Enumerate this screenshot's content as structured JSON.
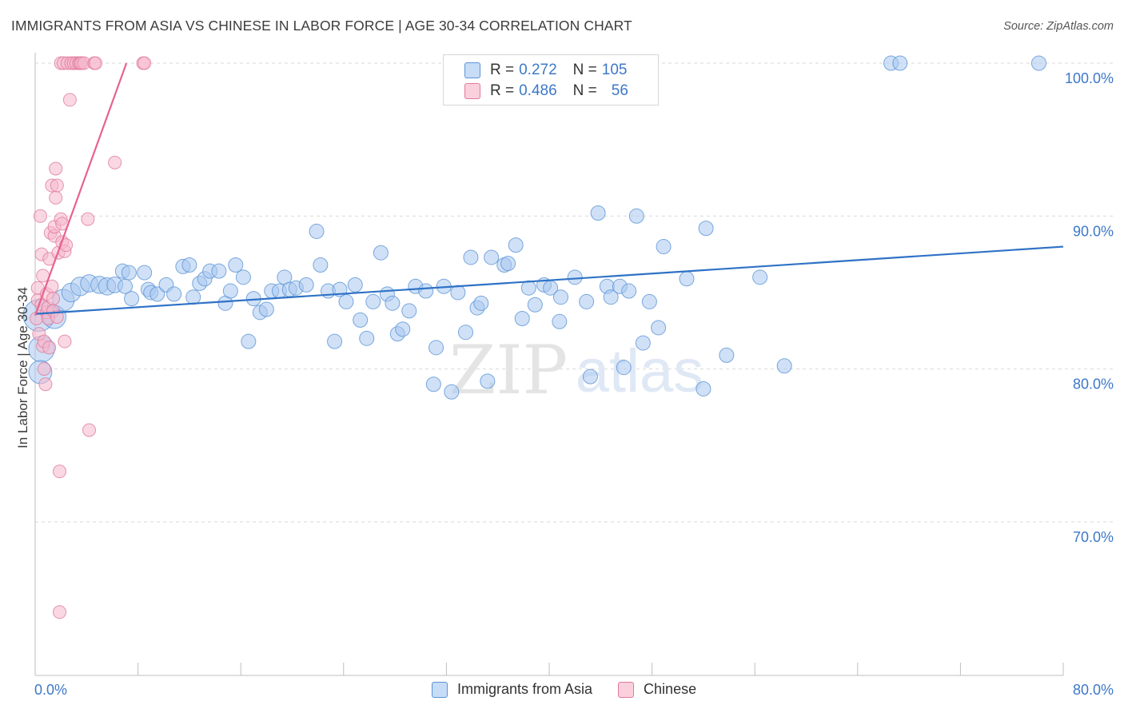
{
  "header": {
    "title": "IMMIGRANTS FROM ASIA VS CHINESE IN LABOR FORCE | AGE 30-34 CORRELATION CHART",
    "source": "Source: ZipAtlas.com"
  },
  "colors": {
    "blue_fill": "#a9c8f0",
    "blue_stroke": "#5b93d6",
    "blue_line": "#2f72c6",
    "pink_fill": "#f6b8cc",
    "pink_stroke": "#e07a9c",
    "pink_line": "#e8628d",
    "tick_label": "#3d78c8",
    "grid": "#d9d9d9"
  },
  "legend": {
    "rows": [
      {
        "r_label": "R =",
        "r_value": "0.272",
        "n_label": "N =",
        "n_value": "105"
      },
      {
        "r_label": "R =",
        "r_value": "0.486",
        "n_label": "N =",
        "n_value": "56"
      }
    ],
    "bottom": [
      {
        "label": "Immigrants from Asia"
      },
      {
        "label": "Chinese"
      }
    ]
  },
  "watermark": {
    "zip": "ZIP",
    "atlas": "atlas"
  },
  "chart_data": {
    "type": "scatter",
    "title": "IMMIGRANTS FROM ASIA VS CHINESE IN LABOR FORCE | AGE 30-34 CORRELATION CHART",
    "xlabel": "",
    "ylabel": "In Labor Force | Age 30-34",
    "xlim": [
      0,
      80
    ],
    "ylim": [
      60.5,
      101.5
    ],
    "x_tick_labels": [
      {
        "value": 0,
        "label": "0.0%"
      },
      {
        "value": 80,
        "label": "80.0%"
      }
    ],
    "y_tick_labels": [
      {
        "value": 100,
        "label": "100.0%"
      },
      {
        "value": 90,
        "label": "90.0%"
      },
      {
        "value": 80,
        "label": "80.0%"
      },
      {
        "value": 70,
        "label": "70.0%"
      }
    ],
    "grid": true,
    "series": [
      {
        "name": "Immigrants from Asia",
        "r": 0.272,
        "n": 105,
        "trend": {
          "x": [
            0,
            80
          ],
          "y": [
            83.6,
            88.0
          ]
        },
        "points": [
          {
            "x": 0.3,
            "y": 83.5,
            "s": 2.2
          },
          {
            "x": 0.5,
            "y": 81.3,
            "s": 1.8
          },
          {
            "x": 0.4,
            "y": 79.8,
            "s": 1.6
          },
          {
            "x": 1.5,
            "y": 83.4,
            "s": 1.6
          },
          {
            "x": 2.2,
            "y": 84.5,
            "s": 1.5
          },
          {
            "x": 2.8,
            "y": 85.0,
            "s": 1.3
          },
          {
            "x": 3.5,
            "y": 85.4,
            "s": 1.3
          },
          {
            "x": 4.2,
            "y": 85.6,
            "s": 1.2
          },
          {
            "x": 5.0,
            "y": 85.5,
            "s": 1.2
          },
          {
            "x": 5.6,
            "y": 85.4,
            "s": 1.2
          },
          {
            "x": 6.2,
            "y": 85.5,
            "s": 1.1
          },
          {
            "x": 6.8,
            "y": 86.4,
            "s": 1.0
          },
          {
            "x": 7.0,
            "y": 85.4,
            "s": 1.0
          },
          {
            "x": 7.5,
            "y": 84.6,
            "s": 1.0
          },
          {
            "x": 7.3,
            "y": 86.3,
            "s": 1.0
          },
          {
            "x": 8.5,
            "y": 86.3,
            "s": 1.0
          },
          {
            "x": 8.8,
            "y": 85.2,
            "s": 1.0
          },
          {
            "x": 9.0,
            "y": 85.0,
            "s": 1.0
          },
          {
            "x": 9.5,
            "y": 84.9,
            "s": 1.0
          },
          {
            "x": 10.2,
            "y": 85.5,
            "s": 1.0
          },
          {
            "x": 10.8,
            "y": 84.9,
            "s": 1.0
          },
          {
            "x": 11.5,
            "y": 86.7,
            "s": 1.0
          },
          {
            "x": 12.0,
            "y": 86.8,
            "s": 1.0
          },
          {
            "x": 12.3,
            "y": 84.7,
            "s": 1.0
          },
          {
            "x": 12.8,
            "y": 85.6,
            "s": 1.0
          },
          {
            "x": 13.2,
            "y": 85.9,
            "s": 1.0
          },
          {
            "x": 13.6,
            "y": 86.4,
            "s": 1.0
          },
          {
            "x": 14.3,
            "y": 86.4,
            "s": 1.0
          },
          {
            "x": 14.8,
            "y": 84.3,
            "s": 1.0
          },
          {
            "x": 15.2,
            "y": 85.1,
            "s": 1.0
          },
          {
            "x": 15.6,
            "y": 86.8,
            "s": 1.0
          },
          {
            "x": 16.2,
            "y": 86.0,
            "s": 1.0
          },
          {
            "x": 16.6,
            "y": 81.8,
            "s": 1.0
          },
          {
            "x": 17.0,
            "y": 84.6,
            "s": 1.0
          },
          {
            "x": 17.5,
            "y": 83.7,
            "s": 1.0
          },
          {
            "x": 18.0,
            "y": 83.9,
            "s": 1.0
          },
          {
            "x": 18.4,
            "y": 85.1,
            "s": 1.0
          },
          {
            "x": 19.0,
            "y": 85.1,
            "s": 1.0
          },
          {
            "x": 19.4,
            "y": 86.0,
            "s": 1.0
          },
          {
            "x": 19.8,
            "y": 85.2,
            "s": 1.0
          },
          {
            "x": 20.3,
            "y": 85.3,
            "s": 1.0
          },
          {
            "x": 21.1,
            "y": 85.5,
            "s": 1.0
          },
          {
            "x": 21.9,
            "y": 89.0,
            "s": 1.0
          },
          {
            "x": 22.2,
            "y": 86.8,
            "s": 1.0
          },
          {
            "x": 22.8,
            "y": 85.1,
            "s": 1.0
          },
          {
            "x": 23.3,
            "y": 81.8,
            "s": 1.0
          },
          {
            "x": 23.7,
            "y": 85.2,
            "s": 1.0
          },
          {
            "x": 24.2,
            "y": 84.4,
            "s": 1.0
          },
          {
            "x": 24.9,
            "y": 85.5,
            "s": 1.0
          },
          {
            "x": 25.3,
            "y": 83.2,
            "s": 1.0
          },
          {
            "x": 25.8,
            "y": 82.0,
            "s": 1.0
          },
          {
            "x": 26.3,
            "y": 84.4,
            "s": 1.0
          },
          {
            "x": 26.9,
            "y": 87.6,
            "s": 1.0
          },
          {
            "x": 27.4,
            "y": 84.9,
            "s": 1.0
          },
          {
            "x": 27.8,
            "y": 84.3,
            "s": 1.0
          },
          {
            "x": 28.2,
            "y": 82.3,
            "s": 1.0
          },
          {
            "x": 28.6,
            "y": 82.6,
            "s": 1.0
          },
          {
            "x": 29.1,
            "y": 83.8,
            "s": 1.0
          },
          {
            "x": 29.6,
            "y": 85.4,
            "s": 1.0
          },
          {
            "x": 30.4,
            "y": 85.1,
            "s": 1.0
          },
          {
            "x": 31.0,
            "y": 79.0,
            "s": 1.0
          },
          {
            "x": 31.2,
            "y": 81.4,
            "s": 1.0
          },
          {
            "x": 31.8,
            "y": 85.4,
            "s": 1.0
          },
          {
            "x": 32.4,
            "y": 78.5,
            "s": 1.0
          },
          {
            "x": 32.9,
            "y": 85.0,
            "s": 1.0
          },
          {
            "x": 33.5,
            "y": 82.4,
            "s": 1.0
          },
          {
            "x": 33.9,
            "y": 87.3,
            "s": 1.0
          },
          {
            "x": 34.4,
            "y": 84.0,
            "s": 1.0
          },
          {
            "x": 34.7,
            "y": 84.3,
            "s": 1.0
          },
          {
            "x": 35.2,
            "y": 79.2,
            "s": 1.0
          },
          {
            "x": 35.5,
            "y": 87.3,
            "s": 1.0
          },
          {
            "x": 36.5,
            "y": 86.8,
            "s": 1.0
          },
          {
            "x": 36.8,
            "y": 86.9,
            "s": 1.0
          },
          {
            "x": 37.4,
            "y": 88.1,
            "s": 1.0
          },
          {
            "x": 37.9,
            "y": 83.3,
            "s": 1.0
          },
          {
            "x": 38.4,
            "y": 85.3,
            "s": 1.0
          },
          {
            "x": 38.9,
            "y": 84.2,
            "s": 1.0
          },
          {
            "x": 39.6,
            "y": 85.5,
            "s": 1.0
          },
          {
            "x": 40.1,
            "y": 85.3,
            "s": 1.0
          },
          {
            "x": 40.8,
            "y": 83.1,
            "s": 1.0
          },
          {
            "x": 40.9,
            "y": 84.7,
            "s": 1.0
          },
          {
            "x": 42.0,
            "y": 86.0,
            "s": 1.0
          },
          {
            "x": 42.9,
            "y": 84.4,
            "s": 1.0
          },
          {
            "x": 43.2,
            "y": 79.5,
            "s": 1.0
          },
          {
            "x": 43.8,
            "y": 90.2,
            "s": 1.0
          },
          {
            "x": 44.5,
            "y": 85.4,
            "s": 1.0
          },
          {
            "x": 44.8,
            "y": 84.7,
            "s": 1.0
          },
          {
            "x": 45.5,
            "y": 85.4,
            "s": 1.0
          },
          {
            "x": 45.8,
            "y": 80.1,
            "s": 1.0
          },
          {
            "x": 46.2,
            "y": 85.1,
            "s": 1.0
          },
          {
            "x": 46.8,
            "y": 90.0,
            "s": 1.0
          },
          {
            "x": 47.3,
            "y": 81.7,
            "s": 1.0
          },
          {
            "x": 47.8,
            "y": 84.4,
            "s": 1.0
          },
          {
            "x": 48.5,
            "y": 82.7,
            "s": 1.0
          },
          {
            "x": 48.9,
            "y": 88.0,
            "s": 1.0
          },
          {
            "x": 50.7,
            "y": 85.9,
            "s": 1.0
          },
          {
            "x": 52.0,
            "y": 78.7,
            "s": 1.0
          },
          {
            "x": 52.2,
            "y": 89.2,
            "s": 1.0
          },
          {
            "x": 53.8,
            "y": 80.9,
            "s": 1.0
          },
          {
            "x": 56.4,
            "y": 86.0,
            "s": 1.0
          },
          {
            "x": 58.3,
            "y": 80.2,
            "s": 1.0
          },
          {
            "x": 66.6,
            "y": 100.0,
            "s": 1.0
          },
          {
            "x": 67.3,
            "y": 100.0,
            "s": 1.0
          },
          {
            "x": 78.1,
            "y": 100.0,
            "s": 1.0
          }
        ]
      },
      {
        "name": "Chinese",
        "r": 0.486,
        "n": 56,
        "trend": {
          "x": [
            0,
            7.1
          ],
          "y": [
            83.5,
            100.0
          ]
        },
        "points": [
          {
            "x": 0.1,
            "y": 83.3
          },
          {
            "x": 0.2,
            "y": 84.5
          },
          {
            "x": 0.2,
            "y": 85.3
          },
          {
            "x": 0.3,
            "y": 82.3
          },
          {
            "x": 0.4,
            "y": 90.0
          },
          {
            "x": 0.5,
            "y": 87.5
          },
          {
            "x": 0.5,
            "y": 84.2
          },
          {
            "x": 0.6,
            "y": 81.5
          },
          {
            "x": 0.7,
            "y": 80.0
          },
          {
            "x": 0.7,
            "y": 81.8
          },
          {
            "x": 0.8,
            "y": 79.0
          },
          {
            "x": 0.9,
            "y": 83.7
          },
          {
            "x": 0.9,
            "y": 84.9
          },
          {
            "x": 1.0,
            "y": 84.0
          },
          {
            "x": 1.0,
            "y": 83.3
          },
          {
            "x": 1.1,
            "y": 81.4
          },
          {
            "x": 1.1,
            "y": 87.2
          },
          {
            "x": 1.2,
            "y": 88.9
          },
          {
            "x": 1.3,
            "y": 92.0
          },
          {
            "x": 1.3,
            "y": 85.4
          },
          {
            "x": 1.4,
            "y": 84.6
          },
          {
            "x": 1.4,
            "y": 83.8
          },
          {
            "x": 1.5,
            "y": 88.7
          },
          {
            "x": 1.5,
            "y": 89.3
          },
          {
            "x": 1.6,
            "y": 91.2
          },
          {
            "x": 1.6,
            "y": 93.1
          },
          {
            "x": 1.7,
            "y": 83.4
          },
          {
            "x": 1.7,
            "y": 92.0
          },
          {
            "x": 1.8,
            "y": 87.6
          },
          {
            "x": 1.9,
            "y": 73.3
          },
          {
            "x": 1.9,
            "y": 64.1
          },
          {
            "x": 2.0,
            "y": 100.0
          },
          {
            "x": 2.0,
            "y": 89.8
          },
          {
            "x": 2.1,
            "y": 88.3
          },
          {
            "x": 2.1,
            "y": 89.5
          },
          {
            "x": 2.2,
            "y": 100.0
          },
          {
            "x": 2.3,
            "y": 87.7
          },
          {
            "x": 2.3,
            "y": 81.8
          },
          {
            "x": 2.4,
            "y": 88.1
          },
          {
            "x": 2.5,
            "y": 100.0
          },
          {
            "x": 2.7,
            "y": 97.6
          },
          {
            "x": 2.8,
            "y": 100.0
          },
          {
            "x": 3.0,
            "y": 100.0
          },
          {
            "x": 3.2,
            "y": 100.0
          },
          {
            "x": 3.4,
            "y": 100.0
          },
          {
            "x": 3.5,
            "y": 100.0
          },
          {
            "x": 3.6,
            "y": 100.0
          },
          {
            "x": 3.8,
            "y": 100.0
          },
          {
            "x": 4.1,
            "y": 89.8
          },
          {
            "x": 4.2,
            "y": 76.0
          },
          {
            "x": 4.6,
            "y": 100.0
          },
          {
            "x": 4.7,
            "y": 100.0
          },
          {
            "x": 6.2,
            "y": 93.5
          },
          {
            "x": 8.4,
            "y": 100.0
          },
          {
            "x": 8.5,
            "y": 100.0
          },
          {
            "x": 0.6,
            "y": 86.1
          }
        ]
      }
    ]
  }
}
